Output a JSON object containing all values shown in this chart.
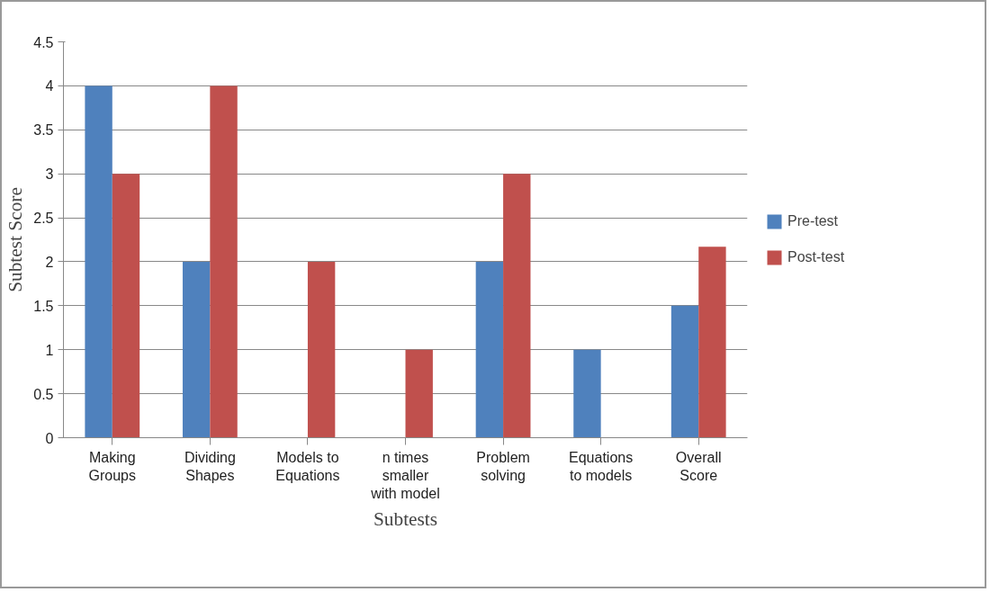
{
  "chart_data": {
    "type": "bar",
    "xlabel": "Subtests",
    "ylabel": "Subtest Score",
    "categories": [
      "Making Groups",
      "Dividing Shapes",
      "Models to Equations",
      "n times smaller with model",
      "Problem solving",
      "Equations to models",
      "Overall Score"
    ],
    "series": [
      {
        "name": "Pre-test",
        "color": "#4f81bd",
        "values": [
          4,
          2,
          0,
          0,
          2,
          1,
          1.5
        ]
      },
      {
        "name": "Post-test",
        "color": "#c0504d",
        "values": [
          3,
          4,
          2,
          1,
          3,
          0,
          2.17
        ]
      }
    ],
    "ylim": [
      0,
      4.5
    ],
    "yticks": [
      0,
      0.5,
      1,
      1.5,
      2,
      2.5,
      3,
      3.5,
      4,
      4.5
    ],
    "grid": "y",
    "legend": "right"
  }
}
